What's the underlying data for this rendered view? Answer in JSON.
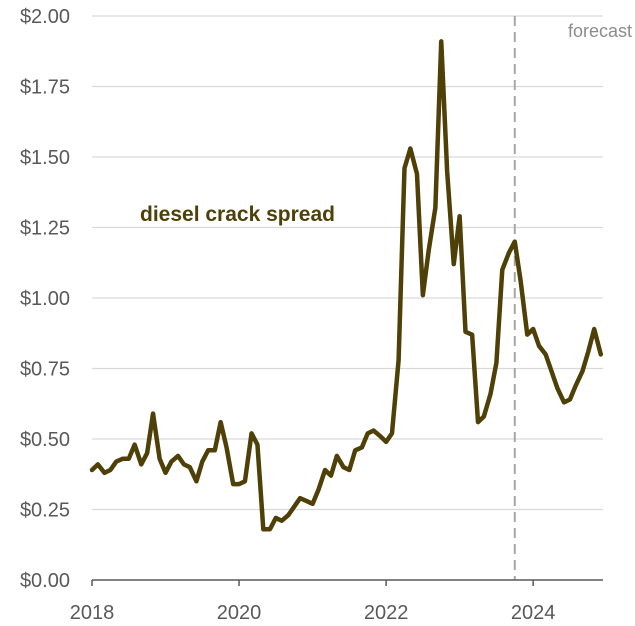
{
  "chart_data": {
    "type": "line",
    "title": "",
    "xlabel": "",
    "ylabel": "",
    "xlim": [
      2018.0,
      2024.95
    ],
    "ylim": [
      0,
      2.0
    ],
    "x_ticks": [
      {
        "value": 2018,
        "label": "2018"
      },
      {
        "value": 2020,
        "label": "2020"
      },
      {
        "value": 2022,
        "label": "2022"
      },
      {
        "value": 2024,
        "label": "2024"
      }
    ],
    "y_ticks": [
      {
        "value": 0,
        "label": "$0.00"
      },
      {
        "value": 0.25,
        "label": "$0.25"
      },
      {
        "value": 0.5,
        "label": "$0.50"
      },
      {
        "value": 0.75,
        "label": "$0.75"
      },
      {
        "value": 1.0,
        "label": "$1.00"
      },
      {
        "value": 1.25,
        "label": "$1.25"
      },
      {
        "value": 1.5,
        "label": "$1.50"
      },
      {
        "value": 1.75,
        "label": "$1.75"
      },
      {
        "value": 2.0,
        "label": "$2.00"
      }
    ],
    "grid": true,
    "forecast": {
      "start_x": 2023.75,
      "label": "forecast"
    },
    "series": [
      {
        "name": "diesel crack spread",
        "color": "#4f4008",
        "x": [
          2018.0,
          2018.08,
          2018.17,
          2018.25,
          2018.33,
          2018.42,
          2018.5,
          2018.58,
          2018.67,
          2018.75,
          2018.83,
          2018.92,
          2019.0,
          2019.08,
          2019.17,
          2019.25,
          2019.33,
          2019.42,
          2019.5,
          2019.58,
          2019.67,
          2019.75,
          2019.83,
          2019.92,
          2020.0,
          2020.08,
          2020.17,
          2020.25,
          2020.33,
          2020.42,
          2020.5,
          2020.58,
          2020.67,
          2020.75,
          2020.83,
          2020.92,
          2021.0,
          2021.08,
          2021.17,
          2021.25,
          2021.33,
          2021.42,
          2021.5,
          2021.58,
          2021.67,
          2021.75,
          2021.83,
          2021.92,
          2022.0,
          2022.08,
          2022.17,
          2022.25,
          2022.33,
          2022.42,
          2022.5,
          2022.58,
          2022.67,
          2022.75,
          2022.83,
          2022.92,
          2023.0,
          2023.08,
          2023.17,
          2023.25,
          2023.33,
          2023.42,
          2023.5,
          2023.58,
          2023.67,
          2023.75,
          2023.83,
          2023.92,
          2024.0,
          2024.08,
          2024.17,
          2024.25,
          2024.33,
          2024.42,
          2024.5,
          2024.58,
          2024.67,
          2024.75,
          2024.83,
          2024.92
        ],
        "values": [
          0.39,
          0.41,
          0.38,
          0.39,
          0.42,
          0.43,
          0.43,
          0.48,
          0.41,
          0.45,
          0.59,
          0.43,
          0.38,
          0.42,
          0.44,
          0.41,
          0.4,
          0.35,
          0.42,
          0.46,
          0.46,
          0.56,
          0.47,
          0.34,
          0.34,
          0.35,
          0.52,
          0.48,
          0.18,
          0.18,
          0.22,
          0.21,
          0.23,
          0.26,
          0.29,
          0.28,
          0.27,
          0.32,
          0.39,
          0.37,
          0.44,
          0.4,
          0.39,
          0.46,
          0.47,
          0.52,
          0.53,
          0.51,
          0.49,
          0.52,
          0.78,
          1.46,
          1.53,
          1.44,
          1.01,
          1.17,
          1.32,
          1.91,
          1.45,
          1.12,
          1.29,
          0.88,
          0.87,
          0.56,
          0.58,
          0.66,
          0.77,
          1.1,
          1.16,
          1.2,
          1.06,
          0.87,
          0.89,
          0.83,
          0.8,
          0.74,
          0.68,
          0.63,
          0.64,
          0.69,
          0.74,
          0.81,
          0.89,
          0.8
        ]
      }
    ]
  }
}
